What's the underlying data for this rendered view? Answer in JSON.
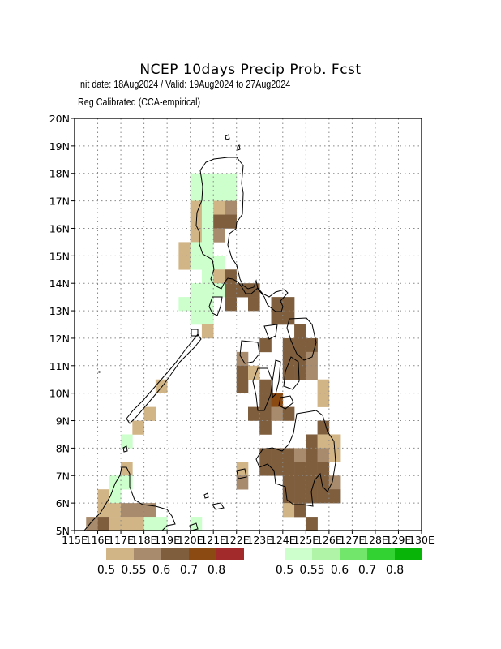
{
  "title": "NCEP 10days Precip Prob. Fcst",
  "subtitle_1": "Init date: 18Aug2024 / Valid: 19Aug2024 to 27Aug2024",
  "subtitle_2": "Reg Calibrated (CCA-empirical)",
  "axes": {
    "lon_min": 115,
    "lon_max": 130,
    "lat_min": 5,
    "lat_max": 20,
    "lon_labels": [
      "115E",
      "116E",
      "117E",
      "118E",
      "119E",
      "120E",
      "121E",
      "122E",
      "123E",
      "124E",
      "125E",
      "126E",
      "127E",
      "128E",
      "129E",
      "130E"
    ],
    "lat_labels": [
      "5N",
      "6N",
      "7N",
      "8N",
      "9N",
      "10N",
      "11N",
      "12N",
      "13N",
      "14N",
      "15N",
      "16N",
      "17N",
      "18N",
      "19N",
      "20N"
    ],
    "grid": "dotted"
  },
  "legend_dry": {
    "colors": [
      "#d2b587",
      "#a88a6c",
      "#7e5e3d",
      "#8a4a12",
      "#a22a2a"
    ],
    "labels": [
      "0.5",
      "0.55",
      "0.6",
      "0.7",
      "0.8"
    ]
  },
  "legend_wet": {
    "colors": [
      "#ccffcc",
      "#b0f4a8",
      "#72e66a",
      "#32d232",
      "#08b408"
    ],
    "labels": [
      "0.5",
      "0.55",
      "0.6",
      "0.7",
      "0.8"
    ]
  },
  "cells": [
    {
      "lon": 120.25,
      "lat": 17.75,
      "c": "#ccffcc"
    },
    {
      "lon": 120.75,
      "lat": 17.75,
      "c": "#ccffcc"
    },
    {
      "lon": 121.25,
      "lat": 17.75,
      "c": "#ccffcc"
    },
    {
      "lon": 121.75,
      "lat": 17.75,
      "c": "#ccffcc"
    },
    {
      "lon": 120.25,
      "lat": 17.25,
      "c": "#ccffcc"
    },
    {
      "lon": 120.75,
      "lat": 17.25,
      "c": "#ccffcc"
    },
    {
      "lon": 121.25,
      "lat": 17.25,
      "c": "#ccffcc"
    },
    {
      "lon": 121.75,
      "lat": 17.25,
      "c": "#ccffcc"
    },
    {
      "lon": 120.25,
      "lat": 16.75,
      "c": "#d2b587"
    },
    {
      "lon": 120.75,
      "lat": 16.75,
      "c": "#ccffcc"
    },
    {
      "lon": 121.25,
      "lat": 16.75,
      "c": "#d2b587"
    },
    {
      "lon": 121.75,
      "lat": 16.75,
      "c": "#a88a6c"
    },
    {
      "lon": 120.25,
      "lat": 16.25,
      "c": "#d2b587"
    },
    {
      "lon": 120.75,
      "lat": 16.25,
      "c": "#ccffcc"
    },
    {
      "lon": 121.25,
      "lat": 16.25,
      "c": "#7e5e3d"
    },
    {
      "lon": 121.75,
      "lat": 16.25,
      "c": "#7e5e3d"
    },
    {
      "lon": 120.25,
      "lat": 15.75,
      "c": "#d2b587"
    },
    {
      "lon": 120.75,
      "lat": 15.75,
      "c": "#ccffcc"
    },
    {
      "lon": 121.25,
      "lat": 15.75,
      "c": "#a88a6c"
    },
    {
      "lon": 119.75,
      "lat": 15.25,
      "c": "#d2b587"
    },
    {
      "lon": 120.25,
      "lat": 15.25,
      "c": "#ccffcc"
    },
    {
      "lon": 120.75,
      "lat": 15.25,
      "c": "#ccffcc"
    },
    {
      "lon": 119.75,
      "lat": 14.75,
      "c": "#d2b587"
    },
    {
      "lon": 120.25,
      "lat": 14.75,
      "c": "#ccffcc"
    },
    {
      "lon": 120.75,
      "lat": 14.75,
      "c": "#ccffcc"
    },
    {
      "lon": 121.25,
      "lat": 14.75,
      "c": "#ccffcc"
    },
    {
      "lon": 120.75,
      "lat": 14.25,
      "c": "#ccffcc"
    },
    {
      "lon": 121.25,
      "lat": 14.25,
      "c": "#d2b587"
    },
    {
      "lon": 121.75,
      "lat": 14.25,
      "c": "#7e5e3d"
    },
    {
      "lon": 120.25,
      "lat": 13.75,
      "c": "#ccffcc"
    },
    {
      "lon": 120.75,
      "lat": 13.75,
      "c": "#ccffcc"
    },
    {
      "lon": 121.25,
      "lat": 13.75,
      "c": "#ccffcc"
    },
    {
      "lon": 121.75,
      "lat": 13.75,
      "c": "#7e5e3d"
    },
    {
      "lon": 122.25,
      "lat": 13.75,
      "c": "#7e5e3d"
    },
    {
      "lon": 122.75,
      "lat": 13.75,
      "c": "#7e5e3d"
    },
    {
      "lon": 119.75,
      "lat": 13.25,
      "c": "#ccffcc"
    },
    {
      "lon": 120.25,
      "lat": 13.25,
      "c": "#ccffcc"
    },
    {
      "lon": 120.75,
      "lat": 13.25,
      "c": "#ccffcc"
    },
    {
      "lon": 121.75,
      "lat": 13.25,
      "c": "#7e5e3d"
    },
    {
      "lon": 122.75,
      "lat": 13.25,
      "c": "#7e5e3d"
    },
    {
      "lon": 123.75,
      "lat": 13.25,
      "c": "#7e5e3d"
    },
    {
      "lon": 124.25,
      "lat": 13.25,
      "c": "#7e5e3d"
    },
    {
      "lon": 120.25,
      "lat": 12.75,
      "c": "#ccffcc"
    },
    {
      "lon": 120.75,
      "lat": 12.75,
      "c": "#ccffcc"
    },
    {
      "lon": 123.75,
      "lat": 12.75,
      "c": "#7e5e3d"
    },
    {
      "lon": 124.25,
      "lat": 12.75,
      "c": "#7e5e3d"
    },
    {
      "lon": 120.75,
      "lat": 12.25,
      "c": "#d2b587"
    },
    {
      "lon": 124.75,
      "lat": 12.25,
      "c": "#7e5e3d"
    },
    {
      "lon": 123.25,
      "lat": 11.75,
      "c": "#7e5e3d"
    },
    {
      "lon": 124.25,
      "lat": 11.75,
      "c": "#7e5e3d"
    },
    {
      "lon": 124.75,
      "lat": 11.75,
      "c": "#7e5e3d"
    },
    {
      "lon": 125.25,
      "lat": 11.75,
      "c": "#7e5e3d"
    },
    {
      "lon": 122.25,
      "lat": 11.25,
      "c": "#a88a6c"
    },
    {
      "lon": 124.25,
      "lat": 11.25,
      "c": "#7e5e3d"
    },
    {
      "lon": 124.75,
      "lat": 11.25,
      "c": "#7e5e3d"
    },
    {
      "lon": 125.25,
      "lat": 11.25,
      "c": "#a88a6c"
    },
    {
      "lon": 122.25,
      "lat": 10.75,
      "c": "#7e5e3d"
    },
    {
      "lon": 122.75,
      "lat": 10.75,
      "c": "#d2b587"
    },
    {
      "lon": 124.25,
      "lat": 10.75,
      "c": "#7e5e3d"
    },
    {
      "lon": 124.75,
      "lat": 10.75,
      "c": "#7e5e3d"
    },
    {
      "lon": 125.25,
      "lat": 10.75,
      "c": "#a88a6c"
    },
    {
      "lon": 122.25,
      "lat": 10.25,
      "c": "#7e5e3d"
    },
    {
      "lon": 123.25,
      "lat": 10.25,
      "c": "#7e5e3d"
    },
    {
      "lon": 125.75,
      "lat": 10.25,
      "c": "#d2b587"
    },
    {
      "lon": 123.25,
      "lat": 9.75,
      "c": "#7e5e3d"
    },
    {
      "lon": 123.75,
      "lat": 9.75,
      "c": "#8a4a12"
    },
    {
      "lon": 125.75,
      "lat": 9.75,
      "c": "#d2b587"
    },
    {
      "lon": 122.75,
      "lat": 9.25,
      "c": "#7e5e3d"
    },
    {
      "lon": 123.25,
      "lat": 9.25,
      "c": "#7e5e3d"
    },
    {
      "lon": 123.75,
      "lat": 9.25,
      "c": "#a88a6c"
    },
    {
      "lon": 124.25,
      "lat": 9.25,
      "c": "#7e5e3d"
    },
    {
      "lon": 123.25,
      "lat": 8.75,
      "c": "#7e5e3d"
    },
    {
      "lon": 125.75,
      "lat": 8.75,
      "c": "#7e5e3d"
    },
    {
      "lon": 125.25,
      "lat": 8.25,
      "c": "#7e5e3d"
    },
    {
      "lon": 125.75,
      "lat": 8.25,
      "c": "#d2b587"
    },
    {
      "lon": 126.25,
      "lat": 8.25,
      "c": "#d2b587"
    },
    {
      "lon": 123.25,
      "lat": 7.75,
      "c": "#7e5e3d"
    },
    {
      "lon": 123.75,
      "lat": 7.75,
      "c": "#7e5e3d"
    },
    {
      "lon": 124.25,
      "lat": 7.75,
      "c": "#7e5e3d"
    },
    {
      "lon": 124.75,
      "lat": 7.75,
      "c": "#a88a6c"
    },
    {
      "lon": 125.25,
      "lat": 7.75,
      "c": "#7e5e3d"
    },
    {
      "lon": 125.75,
      "lat": 7.75,
      "c": "#a88a6c"
    },
    {
      "lon": 126.25,
      "lat": 7.75,
      "c": "#d2b587"
    },
    {
      "lon": 122.25,
      "lat": 7.25,
      "c": "#d2b587"
    },
    {
      "lon": 123.25,
      "lat": 7.25,
      "c": "#7e5e3d"
    },
    {
      "lon": 123.75,
      "lat": 7.25,
      "c": "#7e5e3d"
    },
    {
      "lon": 124.25,
      "lat": 7.25,
      "c": "#7e5e3d"
    },
    {
      "lon": 124.75,
      "lat": 7.25,
      "c": "#7e5e3d"
    },
    {
      "lon": 125.25,
      "lat": 7.25,
      "c": "#7e5e3d"
    },
    {
      "lon": 125.75,
      "lat": 7.25,
      "c": "#7e5e3d"
    },
    {
      "lon": 122.25,
      "lat": 6.75,
      "c": "#a88a6c"
    },
    {
      "lon": 124.25,
      "lat": 6.75,
      "c": "#7e5e3d"
    },
    {
      "lon": 124.75,
      "lat": 6.75,
      "c": "#7e5e3d"
    },
    {
      "lon": 125.25,
      "lat": 6.75,
      "c": "#7e5e3d"
    },
    {
      "lon": 125.75,
      "lat": 6.75,
      "c": "#7e5e3d"
    },
    {
      "lon": 126.25,
      "lat": 6.75,
      "c": "#a88a6c"
    },
    {
      "lon": 124.25,
      "lat": 6.25,
      "c": "#7e5e3d"
    },
    {
      "lon": 124.75,
      "lat": 6.25,
      "c": "#7e5e3d"
    },
    {
      "lon": 125.25,
      "lat": 6.25,
      "c": "#7e5e3d"
    },
    {
      "lon": 125.75,
      "lat": 6.25,
      "c": "#7e5e3d"
    },
    {
      "lon": 126.25,
      "lat": 6.25,
      "c": "#7e5e3d"
    },
    {
      "lon": 124.25,
      "lat": 5.75,
      "c": "#d2b587"
    },
    {
      "lon": 124.75,
      "lat": 5.75,
      "c": "#7e5e3d"
    },
    {
      "lon": 125.25,
      "lat": 5.25,
      "c": "#7e5e3d"
    },
    {
      "lon": 118.25,
      "lat": 9.25,
      "c": "#d2b587"
    },
    {
      "lon": 117.75,
      "lat": 8.75,
      "c": "#d2b587"
    },
    {
      "lon": 118.75,
      "lat": 10.25,
      "c": "#d2b587"
    },
    {
      "lon": 117.25,
      "lat": 8.25,
      "c": "#ccffcc"
    },
    {
      "lon": 117.25,
      "lat": 7.25,
      "c": "#d2b587"
    },
    {
      "lon": 117.25,
      "lat": 6.75,
      "c": "#ccffcc"
    },
    {
      "lon": 116.75,
      "lat": 6.75,
      "c": "#ccffcc"
    },
    {
      "lon": 116.75,
      "lat": 6.25,
      "c": "#ccffcc"
    },
    {
      "lon": 116.25,
      "lat": 6.25,
      "c": "#d2b587"
    },
    {
      "lon": 116.75,
      "lat": 5.75,
      "c": "#d2b587"
    },
    {
      "lon": 116.25,
      "lat": 5.75,
      "c": "#d2b587"
    },
    {
      "lon": 117.25,
      "lat": 5.75,
      "c": "#a88a6c"
    },
    {
      "lon": 117.75,
      "lat": 5.75,
      "c": "#a88a6c"
    },
    {
      "lon": 118.25,
      "lat": 5.75,
      "c": "#a88a6c"
    },
    {
      "lon": 115.75,
      "lat": 5.25,
      "c": "#a88a6c"
    },
    {
      "lon": 116.25,
      "lat": 5.25,
      "c": "#7e5e3d"
    },
    {
      "lon": 116.75,
      "lat": 5.25,
      "c": "#d2b587"
    },
    {
      "lon": 117.25,
      "lat": 5.25,
      "c": "#d2b587"
    },
    {
      "lon": 117.75,
      "lat": 5.25,
      "c": "#d2b587"
    },
    {
      "lon": 118.25,
      "lat": 5.25,
      "c": "#ccffcc"
    },
    {
      "lon": 118.75,
      "lat": 5.25,
      "c": "#ccffcc"
    },
    {
      "lon": 120.25,
      "lat": 5.25,
      "c": "#ccffcc"
    }
  ]
}
